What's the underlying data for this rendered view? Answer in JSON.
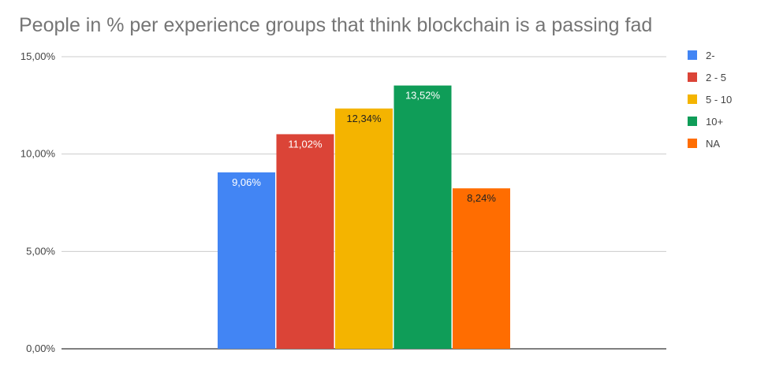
{
  "chart_data": {
    "type": "bar",
    "title": "People in % per experience groups that think blockchain is a passing fad",
    "xlabel": "",
    "ylabel": "",
    "ylim": [
      0,
      15
    ],
    "yticks": [
      "0,00%",
      "5,00%",
      "10,00%",
      "15,00%"
    ],
    "ytick_values": [
      0,
      5,
      10,
      15
    ],
    "grid": true,
    "legend_position": "right",
    "series": [
      {
        "name": "2-",
        "value": 9.06,
        "label": "9,06%",
        "color": "#4285F4",
        "label_color": "#ffffff"
      },
      {
        "name": "2 - 5",
        "value": 11.02,
        "label": "11,02%",
        "color": "#DB4437",
        "label_color": "#ffffff"
      },
      {
        "name": "5 - 10",
        "value": 12.34,
        "label": "12,34%",
        "color": "#F4B400",
        "label_color": "#222222"
      },
      {
        "name": "10+",
        "value": 13.52,
        "label": "13,52%",
        "color": "#0F9D58",
        "label_color": "#ffffff"
      },
      {
        "name": "NA",
        "value": 8.24,
        "label": "8,24%",
        "color": "#FF6D01",
        "label_color": "#222222"
      }
    ]
  }
}
